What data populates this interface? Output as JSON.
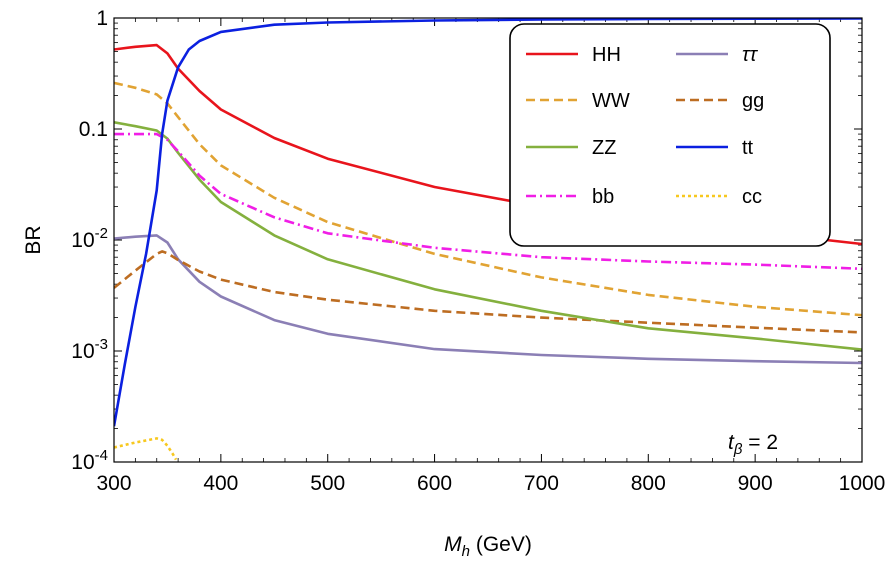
{
  "chart_data": {
    "type": "line",
    "title": "",
    "xlabel": {
      "main": "M",
      "sub": "h",
      "unit": " (GeV)"
    },
    "ylabel": "BR",
    "xlim": [
      300,
      1000
    ],
    "ylim": [
      0.0001,
      1
    ],
    "yscale": "log",
    "x_ticks": [
      300,
      400,
      500,
      600,
      700,
      800,
      900,
      1000
    ],
    "y_ticks": [
      {
        "value": 0.0001,
        "base": "10",
        "exp": "-4",
        "text": ""
      },
      {
        "value": 0.001,
        "base": "10",
        "exp": "-3",
        "text": ""
      },
      {
        "value": 0.01,
        "base": "10",
        "exp": "-2",
        "text": ""
      },
      {
        "value": 0.1,
        "base": "",
        "exp": "",
        "text": "0.1"
      },
      {
        "value": 1,
        "base": "",
        "exp": "",
        "text": "1"
      }
    ],
    "grid": false,
    "legend_position": "top-right",
    "annotation": {
      "main": "t",
      "sub": "β",
      "rest": " = 2"
    },
    "series": [
      {
        "name": "HH",
        "color": "#e8141c",
        "dash": "solid",
        "points": [
          [
            300,
            0.52
          ],
          [
            320,
            0.55
          ],
          [
            340,
            0.57
          ],
          [
            350,
            0.48
          ],
          [
            360,
            0.35
          ],
          [
            380,
            0.22
          ],
          [
            400,
            0.15
          ],
          [
            450,
            0.083
          ],
          [
            500,
            0.054
          ],
          [
            600,
            0.03
          ],
          [
            700,
            0.02
          ],
          [
            800,
            0.015
          ],
          [
            900,
            0.0118
          ],
          [
            1000,
            0.0092
          ]
        ]
      },
      {
        "name": "WW",
        "color": "#e1a333",
        "dash": "dashed",
        "points": [
          [
            300,
            0.26
          ],
          [
            320,
            0.235
          ],
          [
            340,
            0.205
          ],
          [
            350,
            0.17
          ],
          [
            360,
            0.128
          ],
          [
            380,
            0.073
          ],
          [
            400,
            0.047
          ],
          [
            450,
            0.024
          ],
          [
            500,
            0.0145
          ],
          [
            600,
            0.0075
          ],
          [
            700,
            0.0046
          ],
          [
            800,
            0.0032
          ],
          [
            900,
            0.0025
          ],
          [
            1000,
            0.0021
          ]
        ]
      },
      {
        "name": "ZZ",
        "color": "#84b03e",
        "dash": "solid",
        "points": [
          [
            300,
            0.115
          ],
          [
            320,
            0.106
          ],
          [
            340,
            0.097
          ],
          [
            350,
            0.082
          ],
          [
            360,
            0.061
          ],
          [
            380,
            0.035
          ],
          [
            400,
            0.022
          ],
          [
            450,
            0.011
          ],
          [
            500,
            0.0067
          ],
          [
            600,
            0.0036
          ],
          [
            700,
            0.0023
          ],
          [
            800,
            0.0016
          ],
          [
            900,
            0.0013
          ],
          [
            1000,
            0.00103
          ]
        ]
      },
      {
        "name": "bb",
        "color": "#f01ee6",
        "dash": "dashdot",
        "points": [
          [
            300,
            0.09
          ],
          [
            320,
            0.09
          ],
          [
            340,
            0.09
          ],
          [
            350,
            0.08
          ],
          [
            360,
            0.063
          ],
          [
            380,
            0.038
          ],
          [
            400,
            0.026
          ],
          [
            450,
            0.016
          ],
          [
            500,
            0.0115
          ],
          [
            600,
            0.0085
          ],
          [
            700,
            0.007
          ],
          [
            800,
            0.0064
          ],
          [
            900,
            0.006
          ],
          [
            1000,
            0.0055
          ]
        ]
      },
      {
        "name": "ττ",
        "color": "#8b7fb5",
        "dash": "solid",
        "points": [
          [
            300,
            0.0103
          ],
          [
            320,
            0.0107
          ],
          [
            340,
            0.011
          ],
          [
            350,
            0.0095
          ],
          [
            360,
            0.0067
          ],
          [
            380,
            0.0042
          ],
          [
            400,
            0.0031
          ],
          [
            450,
            0.0019
          ],
          [
            500,
            0.00143
          ],
          [
            600,
            0.00104
          ],
          [
            700,
            0.00092
          ],
          [
            800,
            0.00085
          ],
          [
            900,
            0.00081
          ],
          [
            1000,
            0.00078
          ]
        ]
      },
      {
        "name": "gg",
        "color": "#bd6d22",
        "dash": "dashed",
        "points": [
          [
            300,
            0.0037
          ],
          [
            320,
            0.0053
          ],
          [
            340,
            0.0075
          ],
          [
            345,
            0.0079
          ],
          [
            350,
            0.0076
          ],
          [
            360,
            0.0066
          ],
          [
            380,
            0.0052
          ],
          [
            400,
            0.0044
          ],
          [
            450,
            0.0034
          ],
          [
            500,
            0.0029
          ],
          [
            600,
            0.0023
          ],
          [
            700,
            0.002
          ],
          [
            800,
            0.0018
          ],
          [
            900,
            0.00162
          ],
          [
            1000,
            0.00147
          ]
        ]
      },
      {
        "name": "tt",
        "color": "#0b20e0",
        "dash": "solid",
        "points": [
          [
            300,
            0.00021
          ],
          [
            310,
            0.00075
          ],
          [
            320,
            0.0025
          ],
          [
            330,
            0.0075
          ],
          [
            340,
            0.028
          ],
          [
            345,
            0.09
          ],
          [
            350,
            0.18
          ],
          [
            360,
            0.36
          ],
          [
            370,
            0.52
          ],
          [
            380,
            0.62
          ],
          [
            400,
            0.75
          ],
          [
            450,
            0.87
          ],
          [
            500,
            0.91
          ],
          [
            600,
            0.95
          ],
          [
            700,
            0.97
          ],
          [
            800,
            0.98
          ],
          [
            900,
            0.985
          ],
          [
            1000,
            0.99
          ]
        ]
      },
      {
        "name": "cc",
        "color": "#f7c81f",
        "dash": "dotted",
        "points": [
          [
            300,
            0.000135
          ],
          [
            320,
            0.00015
          ],
          [
            340,
            0.000163
          ],
          [
            345,
            0.000158
          ],
          [
            350,
            0.00014
          ],
          [
            355,
            0.000118
          ],
          [
            358,
            0.000105
          ]
        ]
      }
    ]
  }
}
